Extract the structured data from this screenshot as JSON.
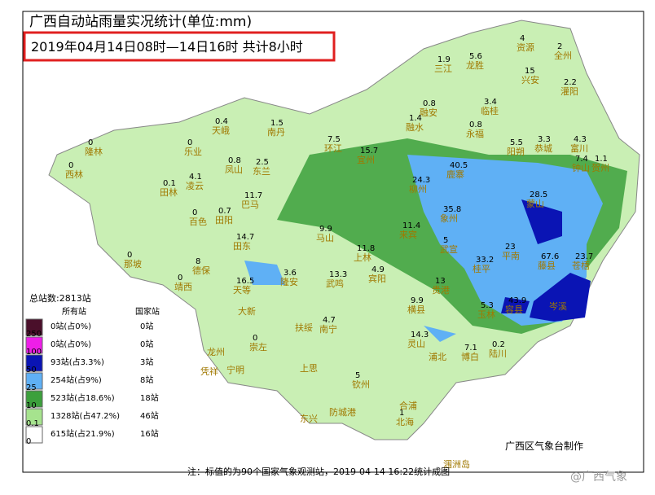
{
  "header": {
    "title": "广西自动站雨量实况统计(单位:mm)",
    "subtitle": "2019年04月14日08时—14日16时  共计8小时"
  },
  "legend": {
    "total": "总站数:2813站",
    "col_all": "所有站",
    "col_national": "国家站",
    "rows": [
      {
        "threshold": "250",
        "all": "0站(占0%)",
        "national": "0站",
        "color": "#4a0f2a"
      },
      {
        "threshold": "100",
        "all": "0站(占0%)",
        "national": "0站",
        "color": "#ee1ee8"
      },
      {
        "threshold": "50",
        "all": "93站(占3.3%)",
        "national": "3站",
        "color": "#0a14b4"
      },
      {
        "threshold": "25",
        "all": "254站(占9%)",
        "national": "8站",
        "color": "#5fb0f5"
      },
      {
        "threshold": "10",
        "all": "523站(占18.6%)",
        "national": "18站",
        "color": "#3ca03c"
      },
      {
        "threshold": "0.1",
        "all": "1328站(占47.2%)",
        "national": "46站",
        "color": "#a6e38e"
      },
      {
        "threshold": "0",
        "all": "615站(占21.9%)",
        "national": "16站",
        "color": "#ffffff"
      }
    ]
  },
  "cities": [
    {
      "name": "三江",
      "value": 1.9
    },
    {
      "name": "龙胜",
      "value": 5.6
    },
    {
      "name": "资源",
      "value": 4
    },
    {
      "name": "全州",
      "value": 2
    },
    {
      "name": "兴安",
      "value": 15
    },
    {
      "name": "灌阳",
      "value": 2.2
    },
    {
      "name": "融安",
      "value": 0.8
    },
    {
      "name": "临桂",
      "value": 3.4
    },
    {
      "name": "隆林",
      "value": 0
    },
    {
      "name": "西林",
      "value": 0
    },
    {
      "name": "乐业",
      "value": 0
    },
    {
      "name": "天峨",
      "value": 0.4
    },
    {
      "name": "南丹",
      "value": 1.5
    },
    {
      "name": "凤山",
      "value": 0.8
    },
    {
      "name": "东兰",
      "value": 2.5
    },
    {
      "name": "环江",
      "value": 7.5
    },
    {
      "name": "融水",
      "value": 1.4
    },
    {
      "name": "永福",
      "value": 0.8
    },
    {
      "name": "阳朔",
      "value": 5.5
    },
    {
      "name": "恭城",
      "value": 3.3
    },
    {
      "name": "富川",
      "value": 4.3
    },
    {
      "name": "钟山",
      "value": 7.4
    },
    {
      "name": "贺州",
      "value": 1.1
    },
    {
      "name": "田林",
      "value": 0.1
    },
    {
      "name": "凌云",
      "value": 4.1
    },
    {
      "name": "巴马",
      "value": 11.7
    },
    {
      "name": "宜州",
      "value": 15.7
    },
    {
      "name": "鹿寨",
      "value": 40.5
    },
    {
      "name": "柳州",
      "value": 24.3
    },
    {
      "name": "百色",
      "value": 0
    },
    {
      "name": "田阳",
      "value": 0.7
    },
    {
      "name": "田东",
      "value": 14.7
    },
    {
      "name": "马山",
      "value": 9.9
    },
    {
      "name": "来宾",
      "value": 11.4
    },
    {
      "name": "武宣",
      "value": 5
    },
    {
      "name": "象州",
      "value": 35.8
    },
    {
      "name": "蒙山",
      "value": 28.5
    },
    {
      "name": "平南",
      "value": 23
    },
    {
      "name": "苍梧",
      "value": 23.7
    },
    {
      "name": "藤县",
      "value": 67.6
    },
    {
      "name": "容县",
      "value": 43.9
    },
    {
      "name": "德保",
      "value": 8
    },
    {
      "name": "那坡",
      "value": 0
    },
    {
      "name": "靖西",
      "value": 0
    },
    {
      "name": "天等",
      "value": 16.5
    },
    {
      "name": "隆安",
      "value": 3.6
    },
    {
      "name": "武鸣",
      "value": 13.3
    },
    {
      "name": "宾阳",
      "value": 4.9
    },
    {
      "name": "上林",
      "value": 11.8
    },
    {
      "name": "贵港",
      "value": 13
    },
    {
      "name": "桂平",
      "value": 33.2
    },
    {
      "name": "横县",
      "value": 9.9
    },
    {
      "name": "灵山",
      "value": 14.3
    },
    {
      "name": "博白",
      "value": 7.1
    },
    {
      "name": "陆川",
      "value": 0.2
    },
    {
      "name": "玉林",
      "value": 5.3
    },
    {
      "name": "崇左",
      "value": 0
    },
    {
      "name": "南宁",
      "value": 4.7
    },
    {
      "name": "钦州",
      "value": 5
    },
    {
      "name": "北海",
      "value": 1
    },
    {
      "name": "大新"
    },
    {
      "name": "扶绥"
    },
    {
      "name": "上思"
    },
    {
      "name": "防城港"
    },
    {
      "name": "东兴"
    },
    {
      "name": "合浦"
    },
    {
      "name": "涠洲岛"
    },
    {
      "name": "龙州"
    },
    {
      "name": "凭祥"
    },
    {
      "name": "宁明"
    },
    {
      "name": "浦北"
    },
    {
      "name": "岑溪"
    }
  ],
  "footer": {
    "note": "注：标值的为90个国家气象观测站，2019-04-14 16:22统计成图",
    "credit": "广西区气象台制作",
    "watermark": "@广西气象"
  }
}
